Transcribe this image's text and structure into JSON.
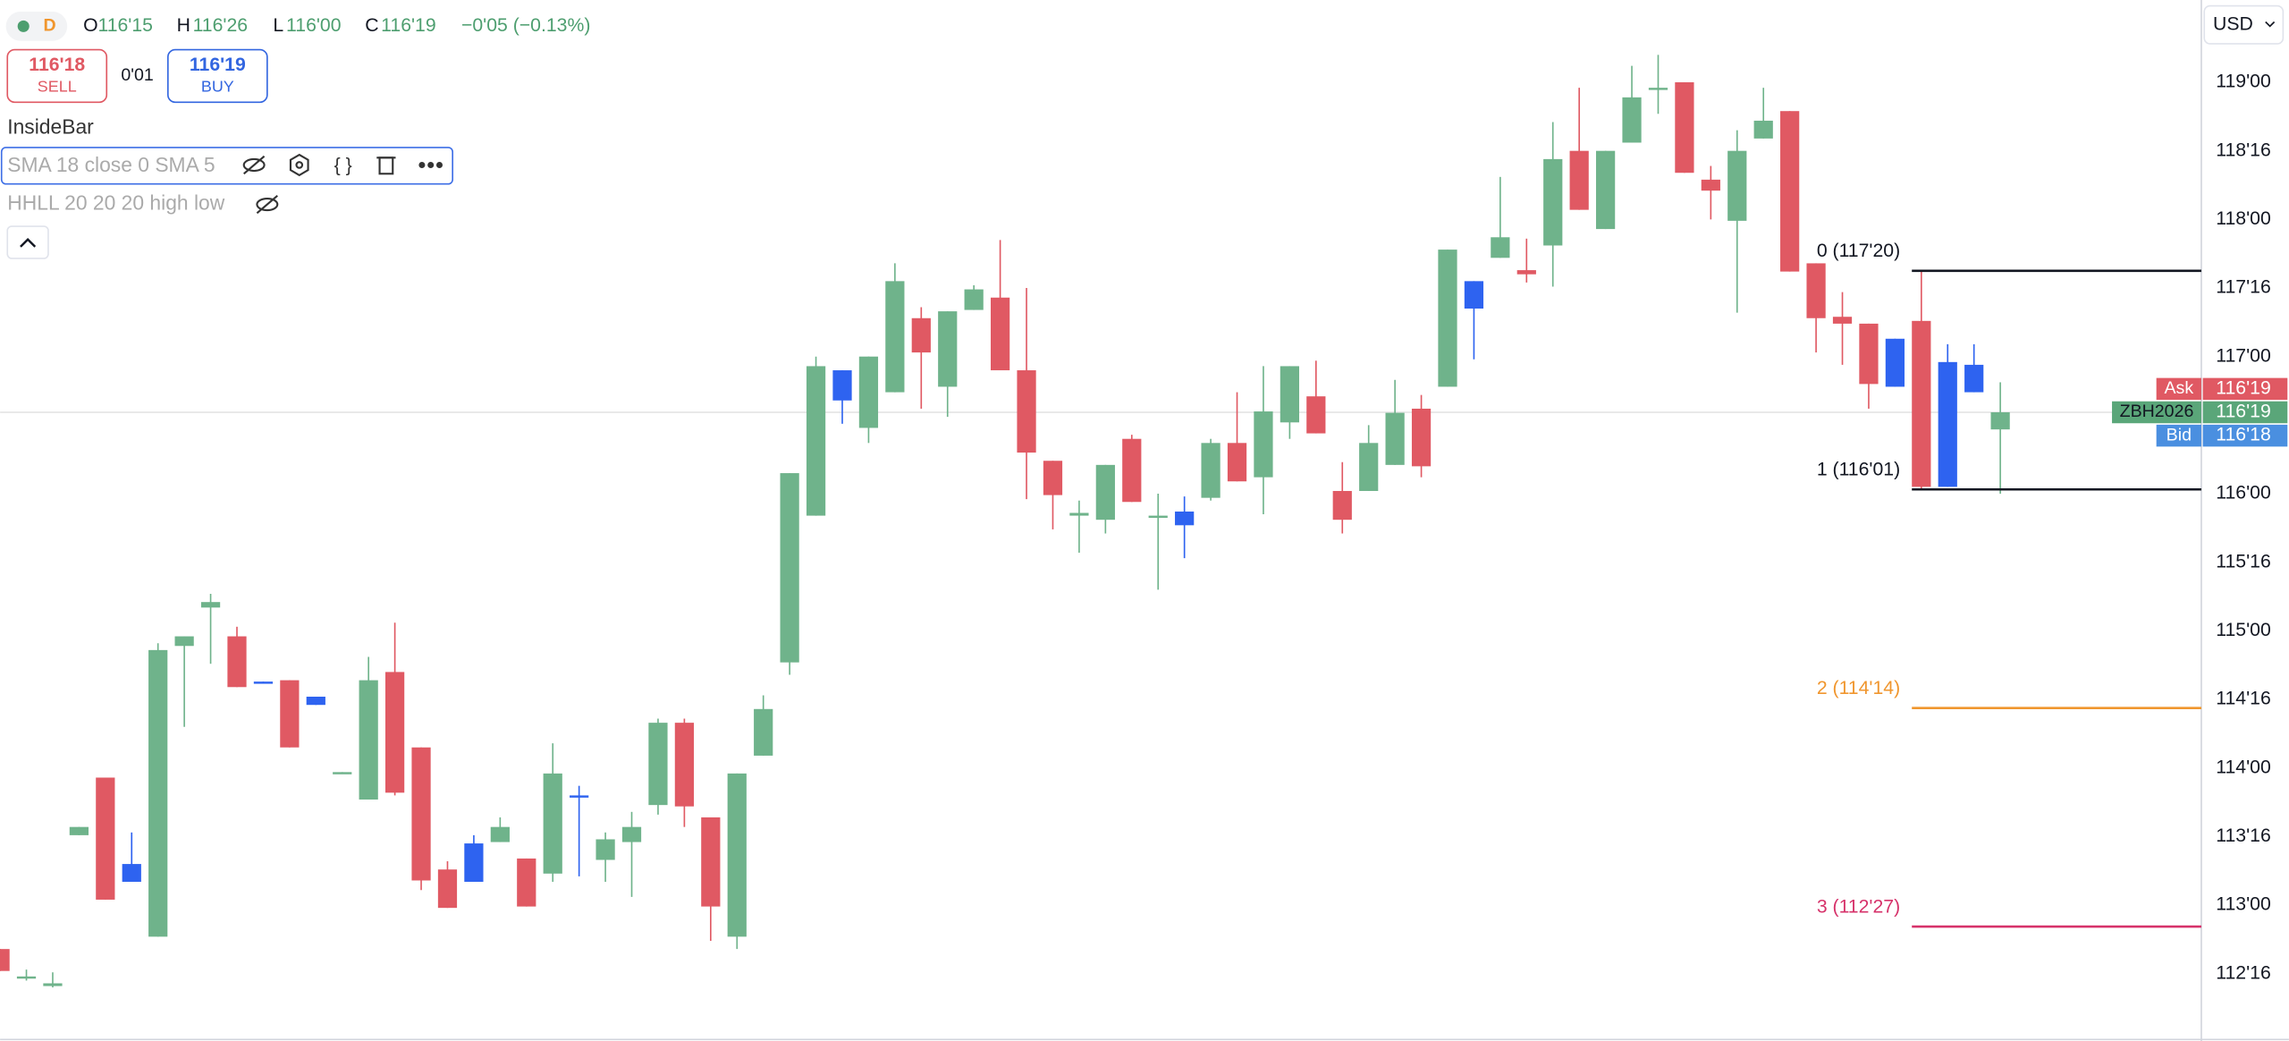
{
  "legend_bar": {
    "interval": "D",
    "items": [
      {
        "key": "O",
        "value": "116'15"
      },
      {
        "key": "H",
        "value": "116'26"
      },
      {
        "key": "L",
        "value": "116'00"
      },
      {
        "key": "C",
        "value": "116'19"
      }
    ],
    "change": "−0'05 (−0.13%)"
  },
  "order_panel": {
    "sell": {
      "price": "116'18",
      "label": "SELL"
    },
    "spread": "0'01",
    "buy": {
      "price": "116'19",
      "label": "BUY"
    }
  },
  "indicators": [
    "InsideBar",
    "SMA 18 close 0 SMA 5",
    "HHLL 20 20 20 high low"
  ],
  "currency": "USD",
  "chart_data": {
    "type": "candlestick",
    "open": [
      112.68,
      112.47,
      112.41,
      113.51,
      113.93,
      113.17,
      112.77,
      114.89,
      115.17,
      114.96,
      114.63,
      114.64,
      114.46,
      113.96,
      113.77,
      114.7,
      114.15,
      113.26,
      113.17,
      113.46,
      113.34,
      113.23,
      113.79,
      113.33,
      113.46,
      113.73,
      114.33,
      113.64,
      112.77,
      114.09,
      114.77,
      115.84,
      116.68,
      116.48,
      116.74,
      117.28,
      116.78,
      117.34,
      117.43,
      116.9,
      116.24,
      115.84,
      115.81,
      116.4,
      115.83,
      115.77,
      115.97,
      116.37,
      116.12,
      116.52,
      116.71,
      116.02,
      116.02,
      116.21,
      116.62,
      116.78,
      117.35,
      117.72,
      117.63,
      117.81,
      118.5,
      117.93,
      118.56,
      118.95,
      119.0,
      118.29,
      117.99,
      118.59,
      118.79,
      117.68,
      117.29,
      117.24,
      116.78,
      117.26,
      116.96,
      116.94,
      116.46875
    ],
    "high": [
      112.68,
      112.53,
      112.51,
      113.57,
      113.93,
      113.53,
      114.91,
      114.96,
      115.27,
      115.03,
      114.63,
      114.64,
      114.52,
      113.97,
      114.81,
      115.06,
      114.15,
      113.32,
      113.51,
      113.64,
      113.34,
      114.18,
      113.87,
      113.53,
      113.68,
      114.36,
      114.36,
      113.64,
      113.96,
      114.53,
      116.15,
      117.0,
      116.9,
      117.0,
      117.68,
      117.36,
      117.33,
      117.52,
      117.85,
      117.5,
      116.24,
      115.95,
      116.21,
      116.43,
      116.0,
      115.98,
      116.4,
      116.74,
      116.93,
      116.93,
      116.97,
      116.23,
      116.5,
      116.83,
      116.72,
      117.78,
      117.55,
      118.31,
      117.86,
      118.71,
      118.96,
      118.5,
      119.12,
      119.2,
      119.0,
      118.39,
      118.65,
      118.96,
      118.79,
      117.68,
      117.47,
      117.24,
      117.13,
      117.625,
      117.09,
      117.09,
      116.8125
    ],
    "low": [
      112.52,
      112.45,
      112.4,
      113.51,
      113.04,
      113.17,
      112.77,
      114.3,
      114.76,
      114.59,
      114.62,
      114.15,
      114.46,
      113.96,
      113.77,
      113.8,
      113.11,
      112.98,
      113.17,
      113.46,
      112.99,
      113.17,
      113.21,
      113.17,
      113.06,
      113.66,
      113.57,
      112.74,
      112.68,
      114.09,
      114.68,
      115.84,
      116.51,
      116.37,
      116.74,
      116.62,
      116.56,
      117.34,
      116.9,
      115.96,
      115.74,
      115.57,
      115.71,
      115.94,
      115.3,
      115.53,
      115.95,
      116.09,
      115.85,
      116.4,
      116.44,
      115.71,
      116.02,
      116.21,
      116.12,
      116.78,
      116.98,
      117.72,
      117.54,
      117.51,
      118.07,
      117.93,
      118.56,
      118.77,
      118.34,
      118.0,
      117.32,
      118.59,
      117.62,
      117.03,
      116.94,
      116.62,
      116.78,
      116.03,
      116.05,
      116.74,
      116.0
    ],
    "close": [
      112.52,
      112.48,
      112.43,
      113.57,
      113.04,
      113.3,
      114.86,
      114.96,
      115.21,
      114.59,
      114.62,
      114.15,
      114.52,
      113.97,
      114.64,
      113.82,
      113.18,
      112.98,
      113.45,
      113.57,
      112.99,
      113.96,
      113.8,
      113.48,
      113.57,
      114.33,
      113.72,
      112.99,
      113.96,
      114.43,
      116.15,
      116.93,
      116.9,
      117.0,
      117.55,
      117.03,
      117.33,
      117.49,
      116.9,
      116.3,
      115.99,
      115.86,
      116.21,
      115.94,
      115.84,
      115.87,
      116.37,
      116.09,
      116.6,
      116.93,
      116.44,
      115.81,
      116.37,
      116.59,
      116.2,
      117.78,
      117.55,
      117.87,
      117.6,
      118.44,
      118.07,
      118.5,
      118.89,
      118.96,
      118.34,
      118.21,
      118.5,
      118.72,
      117.62,
      117.28,
      117.24,
      116.8,
      117.13,
      116.05,
      116.05,
      116.74,
      116.59375
    ],
    "colors": [
      "#e05963",
      "#6fb38b",
      "#6fb38b",
      "#6fb38b",
      "#e05963",
      "#2e63f0",
      "#6fb38b",
      "#6fb38b",
      "#6fb38b",
      "#e05963",
      "#2e63f0",
      "#e05963",
      "#2e63f0",
      "#6fb38b",
      "#6fb38b",
      "#e05963",
      "#e05963",
      "#e05963",
      "#2e63f0",
      "#6fb38b",
      "#e05963",
      "#6fb38b",
      "#2e63f0",
      "#6fb38b",
      "#6fb38b",
      "#6fb38b",
      "#e05963",
      "#e05963",
      "#6fb38b",
      "#6fb38b",
      "#6fb38b",
      "#6fb38b",
      "#2e63f0",
      "#6fb38b",
      "#6fb38b",
      "#e05963",
      "#6fb38b",
      "#6fb38b",
      "#e05963",
      "#e05963",
      "#e05963",
      "#6fb38b",
      "#6fb38b",
      "#e05963",
      "#6fb38b",
      "#2e63f0",
      "#6fb38b",
      "#e05963",
      "#6fb38b",
      "#6fb38b",
      "#e05963",
      "#e05963",
      "#6fb38b",
      "#6fb38b",
      "#e05963",
      "#6fb38b",
      "#2e63f0",
      "#6fb38b",
      "#e05963",
      "#6fb38b",
      "#e05963",
      "#6fb38b",
      "#6fb38b",
      "#6fb38b",
      "#e05963",
      "#e05963",
      "#6fb38b",
      "#6fb38b",
      "#e05963",
      "#e05963",
      "#e05963",
      "#e05963",
      "#2e63f0",
      "#e05963",
      "#2e63f0",
      "#2e63f0",
      "#6fb38b"
    ],
    "ylim": [
      112.02,
      119.6
    ],
    "yticks": [
      {
        "value": 112.5,
        "label": "112'16"
      },
      {
        "value": 113,
        "label": "113'00"
      },
      {
        "value": 113.5,
        "label": "113'16"
      },
      {
        "value": 114,
        "label": "114'00"
      },
      {
        "value": 114.5,
        "label": "114'16"
      },
      {
        "value": 115,
        "label": "115'00"
      },
      {
        "value": 115.5,
        "label": "115'16"
      },
      {
        "value": 116,
        "label": "116'00"
      },
      {
        "value": 117,
        "label": "117'00"
      },
      {
        "value": 117.5,
        "label": "117'16"
      },
      {
        "value": 118,
        "label": "118'00"
      },
      {
        "value": 118.5,
        "label": "118'16"
      },
      {
        "value": 119,
        "label": "119'00"
      }
    ],
    "grid": false,
    "fib_levels": [
      {
        "value": 117.625,
        "label": "0 (117'20)",
        "color": "#131722"
      },
      {
        "value": 116.03125,
        "label": "1 (116'01)",
        "color": "#131722"
      },
      {
        "value": 114.4375,
        "label": "2 (114'14)",
        "color": "#f0962e"
      },
      {
        "value": 112.84375,
        "label": "3 (112'27)",
        "color": "#d6326a"
      }
    ],
    "price_tags": [
      {
        "name": "Ask",
        "value": 116.59375,
        "label": "116'19",
        "color": "#e05963"
      },
      {
        "name": "ZBH2026",
        "value": 116.59375,
        "label": "116'19",
        "color": "#5aa679"
      },
      {
        "name": "Bid",
        "value": 116.5625,
        "label": "116'18",
        "color": "#4a8fe0"
      }
    ]
  }
}
